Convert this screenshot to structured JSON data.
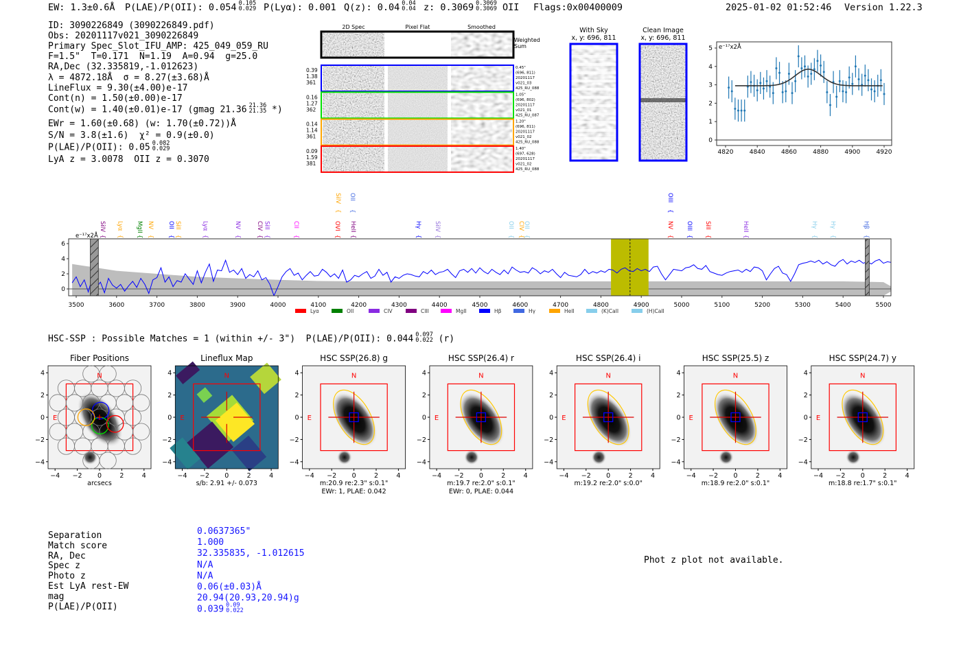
{
  "header": {
    "items": [
      {
        "text": "EW: 1.3±0.6Å"
      },
      {
        "text": "P(LAE)/P(OII): 0.054",
        "hi": "0.105",
        "lo": "0.029"
      },
      {
        "text": "P(Lyα): 0.001"
      },
      {
        "text": "Q(z): 0.04",
        "hi": "0.04",
        "lo": "0.04"
      },
      {
        "text": "z: 0.3069",
        "hi": "0.3069",
        "lo": "0.3069",
        "suffix": " OII"
      },
      {
        "text": "Flags:0x00400009"
      }
    ],
    "timestamp": "2025-01-02 01:52:46",
    "version": "Version 1.22.3"
  },
  "info": {
    "lines": [
      {
        "text": "ID: 3090226849 (3090226849.pdf)"
      },
      {
        "text": "Obs: 20201117v021_3090226849"
      },
      {
        "text": "Primary Spec_Slot_IFU_AMP: 425_049_059_RU"
      },
      {
        "text": "F=1.5\"  T=0.171  N=1.19  A=0.94  g=25.0"
      },
      {
        "text": "RA,Dec (32.335819,-1.012623)"
      },
      {
        "text": "λ = 4872.18Å  σ = 8.27(±3.68)Å"
      },
      {
        "text": "LineFlux = 9.30(±4.00)e-17"
      },
      {
        "text": "Cont(n) = 1.50(±0.00)e-17"
      },
      {
        "text": "Cont(w) = 1.40(±0.01)e-17 (gmag 21.36",
        "hi": "21.36",
        "lo": "21.35",
        "suffix": " *)"
      },
      {
        "text": "EWr = 1.60(±0.68) (w: 1.70(±0.72))Å"
      },
      {
        "text": "S/N = 3.8(±1.6)  χ² = 0.9(±0.0)"
      },
      {
        "text": "P(LAE)/P(OII): 0.05",
        "hi": "0.082",
        "lo": "0.029"
      },
      {
        "text": "LyA z = 3.0078  OII z = 0.3070"
      }
    ]
  },
  "spec2d": {
    "columns": [
      "2D Spec",
      "Pixel Flat",
      "Smoothed"
    ],
    "weighted_label": [
      "Weighted",
      "Sum"
    ],
    "rows": [
      {
        "color": "#0000ff",
        "left": [
          "0.39",
          "1.38",
          "361"
        ],
        "right": [
          "0.45\"",
          "(696, 811)",
          "20201117",
          "v021_03",
          "425_RU_088"
        ]
      },
      {
        "color": "#00e000",
        "left": [
          "0.16",
          "1.27",
          "362"
        ],
        "right": [
          "1.05\"",
          "(696, 802)",
          "20201117",
          "v021_01",
          "425_RU_087"
        ]
      },
      {
        "color": "#ffa500",
        "left": [
          "0.14",
          "1.14",
          "361"
        ],
        "right": [
          "1.20\"",
          "(696, 811)",
          "20201117",
          "v021_02",
          "425_RU_088"
        ]
      },
      {
        "color": "#ff0000",
        "left": [
          "0.09",
          "1.59",
          "381"
        ],
        "right": [
          "1.40\"",
          "(697, 628)",
          "20201117",
          "v021_02",
          "425_RU_088"
        ]
      }
    ]
  },
  "cutouts": [
    {
      "title": "With Sky",
      "coords": "x, y: 696, 811"
    },
    {
      "title": "Clean Image",
      "coords": "x, y: 696, 811"
    }
  ],
  "chart_data": [
    {
      "type": "scatter",
      "title": "",
      "ylabel": "e⁻¹⁷x2Å",
      "xlim": [
        4818,
        4925
      ],
      "ylim": [
        -0.3,
        5.3
      ],
      "xticks": [
        4820,
        4840,
        4860,
        4880,
        4900,
        4920
      ],
      "yticks": [
        0,
        1,
        2,
        3,
        4,
        5
      ],
      "error": 0.6,
      "x": [
        4822,
        4824,
        4826,
        4828,
        4830,
        4832,
        4834,
        4836,
        4838,
        4840,
        4842,
        4844,
        4846,
        4848,
        4850,
        4852,
        4854,
        4856,
        4858,
        4860,
        4862,
        4864,
        4866,
        4868,
        4870,
        4872,
        4874,
        4876,
        4878,
        4880,
        4882,
        4884,
        4886,
        4888,
        4890,
        4892,
        4894,
        4896,
        4898,
        4900,
        4902,
        4904,
        4906,
        4908,
        4910,
        4912,
        4914,
        4916,
        4918,
        4920
      ],
      "y": [
        2.85,
        2.65,
        1.7,
        1.6,
        1.6,
        1.6,
        2.9,
        3.15,
        2.95,
        2.7,
        3.1,
        2.8,
        3.2,
        2.9,
        2.55,
        3.9,
        3.65,
        2.6,
        2.65,
        3.6,
        2.55,
        3.2,
        4.55,
        3.9,
        4.0,
        3.45,
        3.6,
        3.85,
        4.3,
        4.05,
        3.7,
        2.6,
        1.9,
        3.15,
        2.35,
        3.2,
        2.65,
        2.6,
        3.4,
        3.05,
        4.0,
        3.3,
        3.0,
        3.5,
        3.25,
        2.75,
        2.65,
        2.95,
        3.25,
        2.5
      ],
      "fit": {
        "center": 4872.18,
        "sigma": 8.27,
        "baseline": 2.95,
        "amplitude": 0.9,
        "range": [
          4826,
          4919
        ]
      }
    },
    {
      "type": "line",
      "ylabel": "e⁻¹⁷x2Å",
      "xlim": [
        3481,
        5520
      ],
      "ylim": [
        -1,
        6.6
      ],
      "xticks": [
        3500,
        3600,
        3700,
        3800,
        3900,
        4000,
        4100,
        4200,
        4300,
        4400,
        4500,
        4600,
        4700,
        4800,
        4900,
        5000,
        5100,
        5200,
        5300,
        5400,
        5500
      ],
      "yticks": [
        0,
        2,
        4,
        6
      ],
      "x_start": 3490,
      "x_step": 10,
      "flux": [
        0.8,
        1.6,
        0.3,
        1.2,
        -0.4,
        1.5,
        0.2,
        0.9,
        -0.5,
        1.4,
        0.5,
        0.1,
        0.6,
        -0.3,
        0.4,
        1.0,
        0.2,
        1.4,
        0.6,
        -0.6,
        1.2,
        1.5,
        2.8,
        0.9,
        1.6,
        0.3,
        1.1,
        0.9,
        2.0,
        1.3,
        0.6,
        2.4,
        0.8,
        2.2,
        3.3,
        1.0,
        2.5,
        2.4,
        3.8,
        2.2,
        2.5,
        1.9,
        2.7,
        1.4,
        1.9,
        1.6,
        2.4,
        1.2,
        1.5,
        0.6,
        -0.9,
        0.3,
        1.6,
        2.3,
        2.7,
        1.8,
        2.1,
        1.2,
        1.8,
        2.3,
        1.7,
        1.8,
        2.6,
        2.2,
        1.6,
        2.0,
        1.4,
        2.5,
        0.9,
        1.2,
        1.8,
        1.6,
        2.0,
        2.3,
        1.4,
        1.7,
        2.6,
        1.8,
        2.2,
        0.9,
        1.6,
        1.4,
        1.8,
        2.0,
        1.9,
        1.7,
        1.6,
        2.3,
        2.0,
        2.5,
        1.9,
        2.2,
        2.3,
        2.6,
        2.0,
        1.5,
        2.4,
        2.6,
        2.2,
        2.7,
        2.1,
        2.8,
        2.3,
        2.0,
        2.6,
        2.2,
        1.9,
        2.5,
        2.0,
        2.9,
        2.5,
        2.2,
        2.3,
        2.1,
        2.8,
        2.5,
        2.0,
        2.4,
        2.2,
        2.6,
        2.0,
        1.5,
        2.2,
        1.8,
        1.7,
        1.6,
        1.9,
        2.6,
        2.0,
        2.3,
        2.1,
        2.4,
        2.2,
        2.6,
        2.5,
        2.1,
        2.6,
        2.8,
        2.4,
        2.3,
        2.7,
        2.4,
        2.6,
        2.3,
        2.9,
        3.0,
        2.0,
        1.2,
        1.9,
        2.6,
        2.5,
        2.4,
        2.8,
        2.9,
        3.2,
        2.7,
        2.6,
        3.1,
        2.3,
        2.1,
        1.9,
        1.8,
        2.1,
        2.3,
        2.4,
        2.5,
        2.2,
        2.6,
        2.3,
        2.9,
        2.8,
        2.4,
        1.2,
        2.0,
        2.7,
        3.0,
        2.1,
        1.9,
        1.0,
        2.0,
        3.2,
        3.4,
        3.5,
        3.7,
        3.5,
        3.8,
        3.3,
        3.6,
        3.2,
        3.0,
        3.6,
        3.9,
        3.3,
        3.7,
        3.5,
        3.8,
        3.4,
        3.6,
        3.3,
        3.7,
        3.9,
        3.4,
        3.6,
        3.5,
        3.3,
        3.7,
        3.6,
        3.4,
        3.9,
        3.5,
        3.6,
        4.3,
        3.4,
        3.3,
        2.5,
        3.9,
        3.4,
        3.8,
        3.3,
        3.7,
        3.5
      ],
      "error_x": [
        3490,
        3600,
        3700,
        3800,
        3900,
        4000,
        4100,
        4200,
        4300,
        4400,
        4500,
        4600,
        4700,
        4800,
        4900,
        5000,
        5100,
        5200,
        5300,
        5400,
        5500,
        5520
      ],
      "error": [
        3.3,
        2.4,
        2.0,
        1.6,
        1.4,
        1.2,
        1.05,
        1.0,
        1.0,
        1.0,
        1.0,
        1.0,
        1.0,
        1.0,
        1.0,
        1.0,
        1.0,
        1.0,
        1.0,
        1.0,
        0.9,
        0.3
      ],
      "masked": [
        [
          3535,
          3555
        ],
        [
          5455,
          5465
        ]
      ],
      "highlight": [
        4825,
        4918
      ],
      "line_center": 4872.18,
      "lines": [
        {
          "name": "SiIV",
          "wave": 3566,
          "color": "#800080",
          "row": "low"
        },
        {
          "name": "Lyα",
          "wave": 3610,
          "color": "#ffa500",
          "row": "low"
        },
        {
          "name": "MgII",
          "wave": 3658,
          "color": "#008000",
          "row": "low"
        },
        {
          "name": "NV",
          "wave": 3685,
          "color": "#ffa500",
          "row": "low"
        },
        {
          "name": "OII",
          "wave": 3736,
          "color": "#0000ff",
          "row": "low"
        },
        {
          "name": "SiII",
          "wave": 3753,
          "color": "#ffa500",
          "row": "low"
        },
        {
          "name": "Lyα",
          "wave": 3821,
          "color": "#8a2be2",
          "row": "low"
        },
        {
          "name": "NV",
          "wave": 3901,
          "color": "#8a2be2",
          "row": "low"
        },
        {
          "name": "CIV",
          "wave": 3956,
          "color": "#800080",
          "row": "low"
        },
        {
          "name": "SiII",
          "wave": 3974,
          "color": "#8a2be2",
          "row": "low"
        },
        {
          "name": "CII",
          "wave": 4046,
          "color": "#ff00ff",
          "row": "low"
        },
        {
          "name": "OVI",
          "wave": 4148,
          "color": "#ff0000",
          "row": "low"
        },
        {
          "name": "HeII",
          "wave": 4187,
          "color": "#800080",
          "row": "low"
        },
        {
          "name": "SiIV",
          "wave": 4150,
          "color": "#ffa500",
          "row": "high"
        },
        {
          "name": "OII",
          "wave": 4185,
          "color": "#4169e1",
          "row": "high"
        },
        {
          "name": "Hγ",
          "wave": 4349,
          "color": "#0000ff",
          "row": "low"
        },
        {
          "name": "SiIV",
          "wave": 4396,
          "color": "#9370db",
          "row": "low"
        },
        {
          "name": "OII",
          "wave": 4578,
          "color": "#87ceeb",
          "row": "low"
        },
        {
          "name": "CIV",
          "wave": 4604,
          "color": "#ffa500",
          "row": "low"
        },
        {
          "name": "OII",
          "wave": 4617,
          "color": "#87ceeb",
          "row": "low"
        },
        {
          "name": "OIII",
          "wave": 4973,
          "color": "#0000ff",
          "row": "high"
        },
        {
          "name": "NV",
          "wave": 4973,
          "color": "#ff0000",
          "row": "low"
        },
        {
          "name": "OIII",
          "wave": 5020,
          "color": "#0000ff",
          "row": "low"
        },
        {
          "name": "SiII",
          "wave": 5066,
          "color": "#ff0000",
          "row": "low"
        },
        {
          "name": "HeII",
          "wave": 5160,
          "color": "#8a2be2",
          "row": "low"
        },
        {
          "name": "Hγ",
          "wave": 5330,
          "color": "#87ceeb",
          "row": "low"
        },
        {
          "name": "Hγ",
          "wave": 5376,
          "color": "#87ceeb",
          "row": "low"
        },
        {
          "name": "Hβ",
          "wave": 5458,
          "color": "#4169e1",
          "row": "low"
        }
      ],
      "legend": [
        {
          "label": "Lyα",
          "color": "#ff0000"
        },
        {
          "label": "OII",
          "color": "#008000"
        },
        {
          "label": "CIV",
          "color": "#8a2be2"
        },
        {
          "label": "CIII",
          "color": "#800080"
        },
        {
          "label": "MgII",
          "color": "#ff00ff"
        },
        {
          "label": "Hβ",
          "color": "#0000ff"
        },
        {
          "label": "Hγ",
          "color": "#4169e1"
        },
        {
          "label": "HeII",
          "color": "#ffa500"
        },
        {
          "label": "(K)CaII",
          "color": "#87ceeb"
        },
        {
          "label": "(H)CaII",
          "color": "#87ceeb"
        }
      ]
    }
  ],
  "hsc": {
    "title": "HSC-SSP : Possible Matches = 1 (within +/- 3\")  P(LAE)/P(OII): 0.044",
    "hi": "0.097",
    "lo": "0.022",
    "suffix": " (r)",
    "ticks": [
      "−4",
      "−2",
      "0",
      "2",
      "4"
    ],
    "north": "N",
    "east": "E",
    "panels": [
      {
        "title": "Fiber Positions",
        "kind": "fibers",
        "cap1": "arcsecs",
        "cap2": ""
      },
      {
        "title": "Lineflux Map",
        "kind": "lineflux",
        "cap1": "s/b: 2.91 +/- 0.073",
        "cap2": ""
      },
      {
        "title": "HSC SSP(26.8) g",
        "kind": "image",
        "cap1": "m:20.9  re:2.3\"  s:0.1\"",
        "cap2": "EWr: 1, PLAE: 0.042"
      },
      {
        "title": "HSC SSP(26.4) r",
        "kind": "image",
        "cap1": "m:19.7  re:2.0\"  s:0.1\"",
        "cap2": "EWr: 0, PLAE: 0.044"
      },
      {
        "title": "HSC SSP(26.4) i",
        "kind": "image",
        "cap1": "m:19.2  re:2.0\"  s:0.0\"",
        "cap2": ""
      },
      {
        "title": "HSC SSP(25.5) z",
        "kind": "image",
        "cap1": "m:18.9  re:2.0\"  s:0.1\"",
        "cap2": ""
      },
      {
        "title": "HSC SSP(24.7) y",
        "kind": "image",
        "cap1": "m:18.8  re:1.7\"  s:0.1\"",
        "cap2": ""
      }
    ]
  },
  "match": {
    "rows": [
      {
        "label": "Separation",
        "value": "0.0637365\""
      },
      {
        "label": "Match score",
        "value": "1.000"
      },
      {
        "label": "RA, Dec",
        "value": "32.335835, -1.012615"
      },
      {
        "label": "Spec z",
        "value": "N/A"
      },
      {
        "label": "Photo z",
        "value": "N/A"
      },
      {
        "label": "Est LyA rest-EW",
        "value": "0.06(±0.03)Å"
      },
      {
        "label": "mag",
        "value": "20.94(20.93,20.94)g"
      },
      {
        "label": "P(LAE)/P(OII)",
        "value": "0.039",
        "hi": "0.09",
        "lo": "0.022"
      }
    ]
  },
  "photz_message": "Phot z plot not available."
}
